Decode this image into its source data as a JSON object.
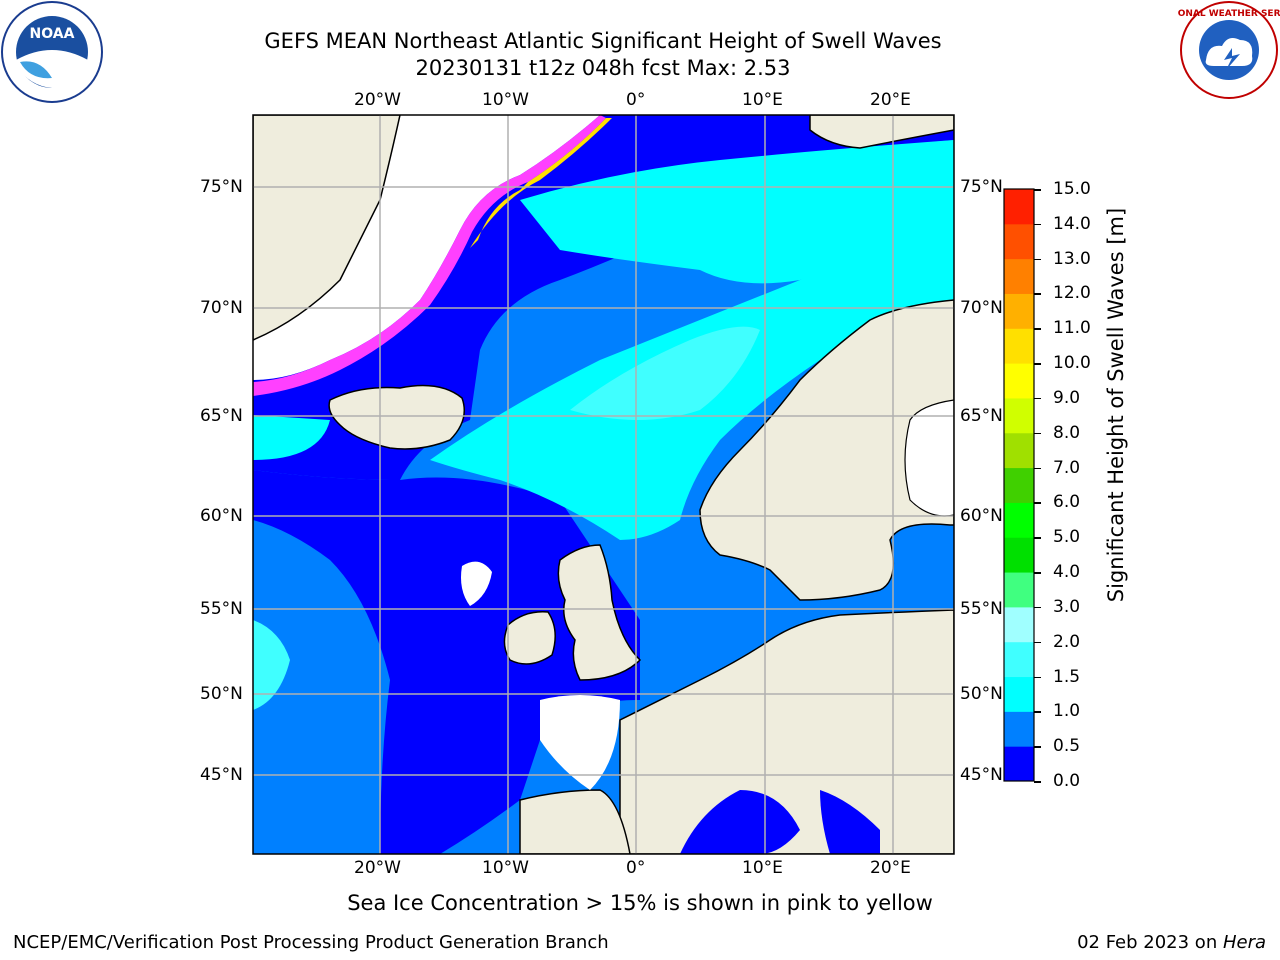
{
  "header": {
    "title_line1": "GEFS MEAN Northeast Atlantic Significant Height of Swell Waves",
    "title_line2": "20230131 t12z 048h fcst   Max: 2.53"
  },
  "logos": {
    "left_text": "NOAA",
    "right_text": "NATIONAL WEATHER SERVICE"
  },
  "map": {
    "lon_labels": [
      "20°W",
      "10°W",
      "0°",
      "10°E",
      "20°E"
    ],
    "lat_labels": [
      "75°N",
      "70°N",
      "65°N",
      "60°N",
      "55°N",
      "50°N",
      "45°N"
    ],
    "colors": {
      "ocean_low": "#0000ff",
      "ocean_mid": "#0080ff",
      "ocean_high": "#00ffff",
      "ocean_peak": "#40ffff",
      "land": "#efeddd",
      "sea_ice": "#ff40ff",
      "grid": "#b0b0b0"
    }
  },
  "colorbar": {
    "label": "Significant Height of Swell Waves [m]",
    "ticks": [
      "15.0",
      "14.0",
      "13.0",
      "12.0",
      "11.0",
      "10.0",
      "9.0",
      "8.0",
      "7.0",
      "6.0",
      "5.0",
      "4.0",
      "3.0",
      "2.0",
      "1.5",
      "1.0",
      "0.5",
      "0.0"
    ],
    "colors": [
      "#0000ff",
      "#0080ff",
      "#00ffff",
      "#40ffff",
      "#a0ffff",
      "#40ff80",
      "#00e000",
      "#00ff00",
      "#40d000",
      "#a0e000",
      "#d0ff00",
      "#ffff00",
      "#ffe000",
      "#ffb000",
      "#ff8000",
      "#ff5000",
      "#ff2000",
      "#ff0000"
    ]
  },
  "caption": "Sea Ice Concentration > 15% is shown in pink to yellow",
  "footer": {
    "left": "NCEP/EMC/Verification Post Processing Product Generation Branch",
    "date": "02 Feb 2023 on ",
    "machine": "Hera"
  }
}
